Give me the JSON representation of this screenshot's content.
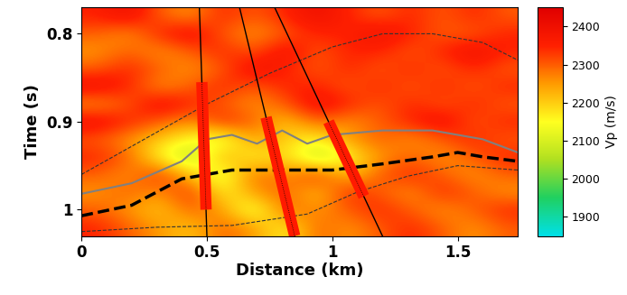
{
  "chart_data": {
    "type": "heatmap",
    "xlabel": "Distance (km)",
    "ylabel": "Time (s)",
    "xlim": [
      0,
      1.74
    ],
    "ylim": [
      1.03,
      0.77
    ],
    "xticks": [
      0,
      0.5,
      1,
      1.5
    ],
    "yticks": [
      0.8,
      0.9,
      1
    ],
    "x": [
      0.0625,
      0.1875,
      0.3125,
      0.4375,
      0.5625,
      0.6875,
      0.8125,
      0.9375,
      1.0625,
      1.1875,
      1.3125,
      1.4375,
      1.5625,
      1.6875
    ],
    "y": [
      0.78,
      0.8,
      0.82,
      0.84,
      0.86,
      0.88,
      0.9,
      0.92,
      0.94,
      0.96,
      0.98,
      1.0,
      1.02
    ],
    "cells": [
      [
        2350,
        2400,
        2300,
        2250,
        2350,
        2300,
        2350,
        2400,
        2350,
        2300,
        2350,
        2300,
        2350,
        2300
      ],
      [
        2300,
        2250,
        2350,
        2400,
        2300,
        2250,
        2300,
        2350,
        2350,
        2400,
        2350,
        2300,
        2300,
        2350
      ],
      [
        2250,
        2300,
        2250,
        2300,
        2350,
        2300,
        2400,
        2300,
        2350,
        2350,
        2300,
        2350,
        2400,
        2350
      ],
      [
        2300,
        2350,
        2300,
        2250,
        2300,
        2400,
        2350,
        2300,
        2350,
        2300,
        2350,
        2300,
        2350,
        2300
      ],
      [
        2400,
        2350,
        2250,
        2300,
        2350,
        2300,
        2350,
        2350,
        2300,
        2350,
        2300,
        2350,
        2300,
        2350
      ],
      [
        2250,
        2300,
        2400,
        2350,
        2300,
        2250,
        2300,
        2400,
        2350,
        2300,
        2350,
        2300,
        2350,
        2300
      ],
      [
        2400,
        2350,
        2300,
        2250,
        2350,
        2300,
        2200,
        2300,
        2250,
        2300,
        2350,
        2400,
        2300,
        2350
      ],
      [
        2300,
        2250,
        2200,
        2150,
        2100,
        2250,
        2200,
        2150,
        2250,
        2300,
        2250,
        2300,
        2350,
        2300
      ],
      [
        2350,
        2300,
        2150,
        2050,
        2250,
        2150,
        2200,
        2050,
        2150,
        2250,
        2300,
        2250,
        2300,
        2350
      ],
      [
        2300,
        2250,
        2350,
        2200,
        2100,
        2300,
        2250,
        2350,
        2200,
        2300,
        2350,
        2300,
        2250,
        2300
      ],
      [
        2250,
        2300,
        2250,
        2350,
        2150,
        2250,
        2300,
        2200,
        2350,
        2300,
        2250,
        2350,
        2300,
        2250
      ],
      [
        2300,
        2250,
        2200,
        2300,
        2250,
        2100,
        2300,
        2250,
        2300,
        2350,
        2300,
        2250,
        2300,
        2350
      ],
      [
        2350,
        2300,
        2250,
        2200,
        2300,
        2250,
        2150,
        2300,
        2250,
        2300,
        2350,
        2300,
        2250,
        2300
      ]
    ],
    "colorbar": {
      "label": "Vp (m/s)",
      "range": [
        1850,
        2450
      ],
      "ticks": [
        1900,
        2000,
        2100,
        2200,
        2300,
        2400
      ]
    },
    "lines": [
      {
        "color": "#333333",
        "line_style": "dashed",
        "x": [
          0,
          0.25,
          0.5,
          0.75,
          1.0,
          1.2,
          1.4,
          1.6,
          1.74
        ],
        "y": [
          0.96,
          0.92,
          0.88,
          0.845,
          0.815,
          0.8,
          0.8,
          0.81,
          0.83
        ]
      },
      {
        "color": "#808080",
        "line_style": "solid",
        "x": [
          0,
          0.2,
          0.4,
          0.5,
          0.6,
          0.7,
          0.8,
          0.9,
          1.0,
          1.2,
          1.4,
          1.6,
          1.74
        ],
        "y": [
          0.982,
          0.97,
          0.945,
          0.92,
          0.915,
          0.925,
          0.91,
          0.925,
          0.915,
          0.91,
          0.91,
          0.92,
          0.935
        ]
      },
      {
        "color": "#000000",
        "line_style": "dashed",
        "x": [
          0,
          0.2,
          0.4,
          0.6,
          0.8,
          1.0,
          1.2,
          1.4,
          1.5,
          1.6,
          1.74
        ],
        "y": [
          1.007,
          0.995,
          0.965,
          0.955,
          0.955,
          0.955,
          0.948,
          0.94,
          0.935,
          0.94,
          0.945
        ]
      },
      {
        "color": "#333333",
        "line_style": "dashed",
        "x": [
          0,
          0.3,
          0.6,
          0.9,
          1.1,
          1.3,
          1.5,
          1.74
        ],
        "y": [
          1.025,
          1.02,
          1.018,
          1.005,
          0.98,
          0.962,
          0.95,
          0.955
        ]
      }
    ],
    "wells": [
      {
        "x": [
          0.47,
          0.5
        ],
        "y": [
          0.77,
          1.03
        ],
        "log": [
          0.855,
          1.0
        ]
      },
      {
        "x": [
          0.63,
          0.85
        ],
        "y": [
          0.77,
          1.03
        ],
        "log": [
          0.895,
          1.03
        ]
      },
      {
        "x": [
          0.77,
          1.2
        ],
        "y": [
          0.77,
          1.03
        ],
        "log": [
          0.9,
          0.985
        ]
      }
    ]
  }
}
